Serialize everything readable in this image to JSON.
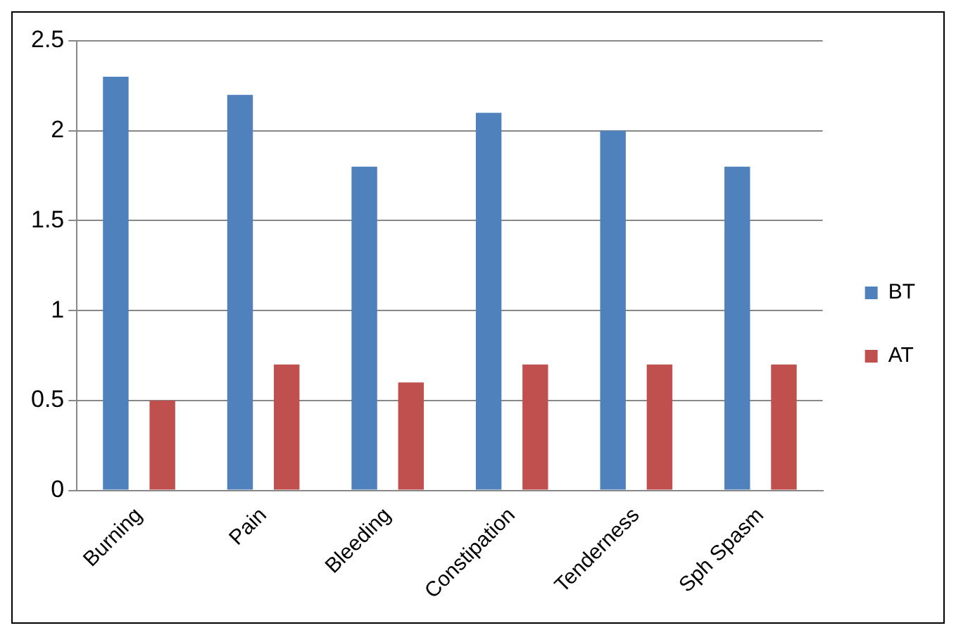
{
  "chart_data": {
    "type": "bar",
    "categories": [
      "Burning",
      "Pain",
      "Bleeding",
      "Constipation",
      "Tenderness",
      "Sph Spasm"
    ],
    "series": [
      {
        "name": "BT",
        "color": "#4f81bd",
        "values": [
          2.3,
          2.2,
          1.8,
          2.1,
          2.0,
          1.8
        ]
      },
      {
        "name": "AT",
        "color": "#c0504d",
        "values": [
          0.5,
          0.7,
          0.6,
          0.7,
          0.7,
          0.7
        ]
      }
    ],
    "ylim": [
      0,
      2.5
    ],
    "yticks": [
      0,
      0.5,
      1,
      1.5,
      2,
      2.5
    ],
    "grid": "y",
    "legend": "right"
  }
}
